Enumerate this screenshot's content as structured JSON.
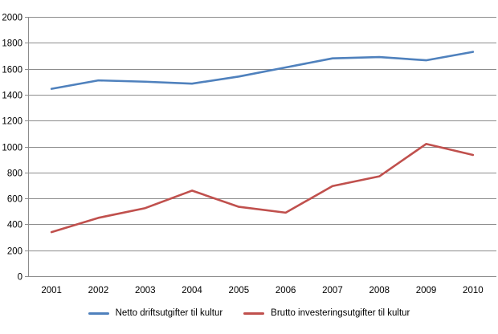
{
  "chart_data": {
    "type": "line",
    "title": "",
    "xlabel": "",
    "ylabel": "",
    "categories": [
      "2001",
      "2002",
      "2003",
      "2004",
      "2005",
      "2006",
      "2007",
      "2008",
      "2009",
      "2010"
    ],
    "series": [
      {
        "name": "Netto driftsutgifter til kultur",
        "color": "#4F81BD",
        "values": [
          1445,
          1510,
          1500,
          1485,
          1540,
          1610,
          1680,
          1690,
          1665,
          1730
        ]
      },
      {
        "name": "Brutto investeringsutgifter til kultur",
        "color": "#C0504D",
        "values": [
          340,
          450,
          525,
          660,
          535,
          490,
          695,
          770,
          1020,
          935
        ]
      }
    ],
    "ylim": [
      0,
      2000
    ],
    "ytick_step": 200,
    "yticks": [
      "0",
      "200",
      "400",
      "600",
      "800",
      "1000",
      "1200",
      "1400",
      "1600",
      "1800",
      "2000"
    ],
    "grid": true,
    "legend_position": "bottom",
    "colors": {
      "gridline": "#8C8C8C",
      "axis": "#8C8C8C",
      "text": "#000000",
      "background": "#FFFFFF"
    }
  }
}
